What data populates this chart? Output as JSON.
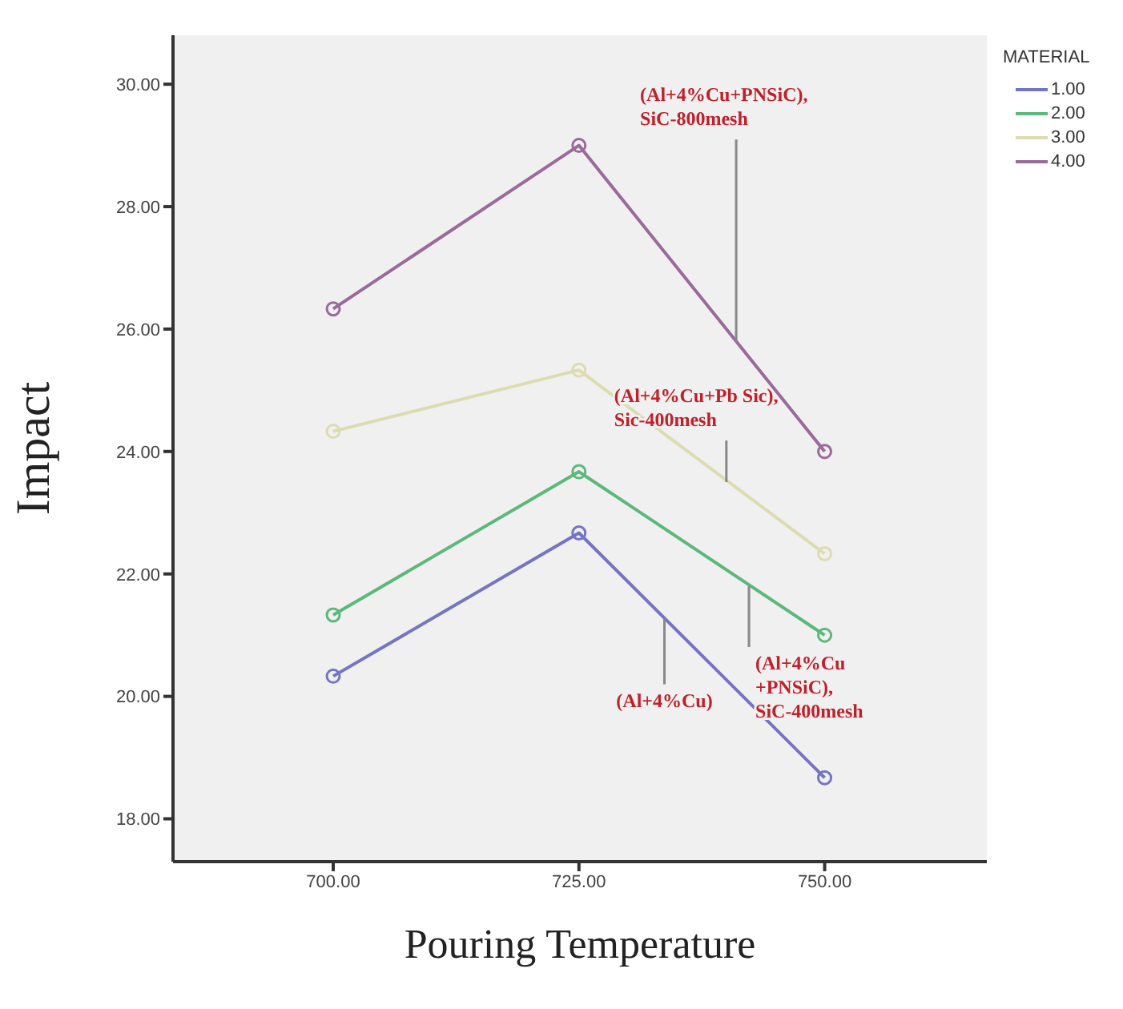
{
  "chart_data": {
    "type": "line",
    "xlabel": "Pouring Temperature",
    "ylabel": "Impact",
    "legend_title": "MATERIAL",
    "legend": "top right",
    "marker": "circle",
    "grid": false,
    "x": [
      700,
      725,
      750
    ],
    "xlim": [
      683.7,
      766.5
    ],
    "xticks": [
      {
        "value": 700,
        "label": "700.00"
      },
      {
        "value": 725,
        "label": "725.00"
      },
      {
        "value": 750,
        "label": "750.00"
      }
    ],
    "ylim": [
      17.3,
      30.8
    ],
    "yticks": [
      {
        "value": 18,
        "label": "18.00"
      },
      {
        "value": 20,
        "label": "20.00"
      },
      {
        "value": 22,
        "label": "22.00"
      },
      {
        "value": 24,
        "label": "24.00"
      },
      {
        "value": 26,
        "label": "26.00"
      },
      {
        "value": 28,
        "label": "28.00"
      },
      {
        "value": 30,
        "label": "30.00"
      }
    ],
    "series": [
      {
        "name": "1.00",
        "color": "#7474c4",
        "values": [
          20.33,
          22.67,
          18.67
        ]
      },
      {
        "name": "2.00",
        "color": "#5cb87a",
        "values": [
          21.33,
          23.67,
          21.0
        ]
      },
      {
        "name": "3.00",
        "color": "#dcdcb0",
        "values": [
          24.33,
          25.33,
          22.33
        ]
      },
      {
        "name": "4.00",
        "color": "#9a6a9a",
        "values": [
          26.33,
          29.0,
          24.0
        ]
      }
    ],
    "annotations": [
      {
        "text": "(Al+4%Cu+PNSiC), SiC-800mesh",
        "x": 741,
        "y": 25.8
      },
      {
        "text": "(Al+4%Cu+Pb Sic), Sic-400mesh",
        "x": 740,
        "y": 23.5
      },
      {
        "text": "(Al+4%Cu +PNSiC), SiC-400mesh",
        "x": 742.3,
        "y": 21.8
      },
      {
        "text": "(Al+4%Cu)",
        "x": 733.7,
        "y": 21.27
      }
    ]
  }
}
